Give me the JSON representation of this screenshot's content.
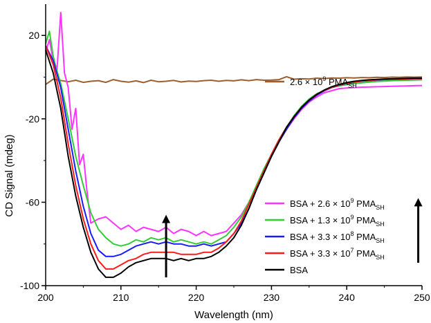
{
  "chart_data": {
    "type": "line",
    "xlabel": "Wavelength (nm)",
    "ylabel": "CD Signal (mdeg)",
    "xlim": [
      200,
      250
    ],
    "ylim": [
      -100,
      35
    ],
    "xticks": [
      200,
      210,
      220,
      230,
      240,
      250
    ],
    "yticks": [
      -100,
      -60,
      -20,
      20
    ],
    "grid": false,
    "legend_position": "bottom-right",
    "series": [
      {
        "name": "2.6 × 10⁹ PMA",
        "legend": {
          "base": "2.6 × 10",
          "exp": "9",
          "main": " PMA",
          "sub": "SH"
        },
        "color": "#9b5e2e",
        "x": [
          200,
          201,
          202,
          203,
          204,
          205,
          206,
          207,
          208,
          209,
          210,
          211,
          212,
          213,
          214,
          215,
          216,
          217,
          218,
          219,
          220,
          221,
          222,
          223,
          224,
          225,
          226,
          227,
          228,
          229,
          230,
          231,
          232,
          233,
          234,
          235,
          236,
          237,
          238,
          239,
          240,
          241,
          242,
          243,
          244,
          245,
          246,
          247,
          248,
          249,
          250
        ],
        "y": [
          -3.5,
          -1.0,
          -1.6,
          -2.2,
          -1.5,
          -2.5,
          -2.0,
          -1.7,
          -2.5,
          -1.2,
          -2.0,
          -2.4,
          -1.8,
          -2.6,
          -1.5,
          -2.2,
          -2.0,
          -1.6,
          -2.3,
          -1.9,
          -2.1,
          -1.7,
          -1.5,
          -2.0,
          -1.6,
          -1.8,
          -1.3,
          -1.7,
          -1.2,
          -1.5,
          -1.4,
          -1.2,
          0.2,
          -1.0,
          -0.8,
          -0.9,
          -0.5,
          -0.7,
          -0.4,
          -0.5,
          -0.3,
          -0.4,
          -0.2,
          -0.3,
          -0.1,
          -0.2,
          0.0,
          -0.1,
          0.1,
          0.0,
          0.1
        ]
      },
      {
        "name": "BSA + 2.6 × 10⁹ PMA",
        "legend": {
          "base": "BSA + 2.6 × 10",
          "exp": "9",
          "main": " PMA",
          "sub": "SH"
        },
        "color": "#ff33ff",
        "x": [
          200,
          200.5,
          201,
          201.5,
          202,
          202.5,
          203,
          203.5,
          204,
          204.5,
          205,
          205.5,
          206,
          207,
          208,
          209,
          210,
          211,
          212,
          213,
          214,
          215,
          216,
          217,
          218,
          219,
          220,
          221,
          222,
          223,
          224,
          225,
          226,
          227,
          228,
          229,
          230,
          231,
          232,
          233,
          234,
          235,
          236,
          237,
          238,
          239,
          240,
          241,
          242,
          243,
          244,
          245,
          246,
          247,
          248,
          249,
          250
        ],
        "y": [
          12,
          18,
          8,
          3,
          31,
          2,
          -5,
          -25,
          -15,
          -42,
          -37,
          -55,
          -70,
          -68,
          -67,
          -70,
          -73,
          -71,
          -74,
          -72,
          -73,
          -74,
          -72,
          -75,
          -73,
          -74,
          -76,
          -74,
          -76,
          -75,
          -74,
          -70,
          -66,
          -60,
          -53,
          -45,
          -38,
          -31,
          -25,
          -20,
          -15.5,
          -12,
          -9.5,
          -7.5,
          -6.5,
          -5.5,
          -5.2,
          -5.0,
          -4.8,
          -4.7,
          -4.6,
          -4.5,
          -4.4,
          -4.3,
          -4.2,
          -4.1,
          -4.0
        ]
      },
      {
        "name": "BSA + 1.3 × 10⁹ PMA",
        "legend": {
          "base": "BSA + 1.3 × 10",
          "exp": "9",
          "main": " PMA",
          "sub": "SH"
        },
        "color": "#33cc33",
        "x": [
          200,
          200.5,
          201,
          201.5,
          202,
          203,
          204,
          205,
          206,
          207,
          208,
          209,
          210,
          211,
          212,
          213,
          214,
          215,
          216,
          217,
          218,
          219,
          220,
          221,
          222,
          223,
          224,
          225,
          226,
          227,
          228,
          229,
          230,
          231,
          232,
          233,
          234,
          235,
          236,
          237,
          238,
          239,
          240,
          241,
          242,
          243,
          244,
          245,
          246,
          247,
          248,
          249,
          250
        ],
        "y": [
          16,
          22,
          10,
          3,
          -3,
          -20,
          -38,
          -52,
          -65,
          -73,
          -77,
          -80,
          -81,
          -80,
          -78,
          -79,
          -77,
          -78,
          -77,
          -79,
          -78,
          -79,
          -80,
          -79,
          -80,
          -78,
          -76,
          -72,
          -67,
          -60,
          -52,
          -44,
          -37,
          -30,
          -24,
          -18.5,
          -14,
          -10.5,
          -8,
          -6.5,
          -5,
          -4.2,
          -3.6,
          -3.1,
          -2.7,
          -2.4,
          -2.1,
          -1.9,
          -1.7,
          -1.6,
          -1.5,
          -1.4,
          -1.3
        ]
      },
      {
        "name": "BSA + 3.3 × 10⁸ PMA",
        "legend": {
          "base": "BSA + 3.3 × 10",
          "exp": "8",
          "main": " PMA",
          "sub": "SH"
        },
        "color": "#1a1aff",
        "x": [
          200,
          201,
          202,
          203,
          204,
          205,
          206,
          207,
          208,
          209,
          210,
          211,
          212,
          213,
          214,
          215,
          216,
          217,
          218,
          219,
          220,
          221,
          222,
          223,
          224,
          225,
          226,
          227,
          228,
          229,
          230,
          231,
          232,
          233,
          234,
          235,
          236,
          237,
          238,
          239,
          240,
          241,
          242,
          243,
          244,
          245,
          246,
          247,
          248,
          249,
          250
        ],
        "y": [
          15,
          8,
          -5,
          -25,
          -45,
          -62,
          -75,
          -83,
          -86,
          -86,
          -85,
          -83,
          -81,
          -80,
          -79,
          -80,
          -79,
          -80,
          -80,
          -81,
          -81,
          -80,
          -81,
          -80,
          -79,
          -75,
          -70,
          -63,
          -54,
          -46,
          -38,
          -31,
          -25,
          -19.5,
          -15,
          -11.5,
          -8.7,
          -6.6,
          -5,
          -3.9,
          -3.0,
          -2.4,
          -2.0,
          -1.7,
          -1.4,
          -1.2,
          -1.1,
          -1.0,
          -0.9,
          -0.8,
          -0.8
        ]
      },
      {
        "name": "BSA + 3.3 × 10⁷ PMA",
        "legend": {
          "base": "BSA + 3.3 × 10",
          "exp": "7",
          "main": " PMA",
          "sub": "SH"
        },
        "color": "#ff1a1a",
        "x": [
          200,
          201,
          202,
          203,
          204,
          205,
          206,
          207,
          208,
          209,
          210,
          211,
          212,
          213,
          214,
          215,
          216,
          217,
          218,
          219,
          220,
          221,
          222,
          223,
          224,
          225,
          226,
          227,
          228,
          229,
          230,
          231,
          232,
          233,
          234,
          235,
          236,
          237,
          238,
          239,
          240,
          241,
          242,
          243,
          244,
          245,
          246,
          247,
          248,
          249,
          250
        ],
        "y": [
          15,
          6,
          -10,
          -32,
          -52,
          -68,
          -80,
          -88,
          -92,
          -92,
          -90,
          -88,
          -87,
          -85,
          -84,
          -84,
          -84,
          -84,
          -85,
          -85,
          -85,
          -84,
          -84,
          -82,
          -79,
          -75,
          -69,
          -61,
          -53,
          -45,
          -37,
          -30,
          -24,
          -19,
          -14.5,
          -11,
          -8.4,
          -6.4,
          -4.9,
          -3.8,
          -2.9,
          -2.3,
          -1.9,
          -1.6,
          -1.3,
          -1.1,
          -1.0,
          -0.9,
          -0.8,
          -0.7,
          -0.7
        ]
      },
      {
        "name": "BSA",
        "legend": {
          "base": "BSA",
          "exp": "",
          "main": "",
          "sub": ""
        },
        "color": "#000000",
        "x": [
          200,
          201,
          202,
          203,
          204,
          205,
          206,
          207,
          208,
          209,
          210,
          211,
          212,
          213,
          214,
          215,
          216,
          217,
          218,
          219,
          220,
          221,
          222,
          223,
          224,
          225,
          226,
          227,
          228,
          229,
          230,
          231,
          232,
          233,
          234,
          235,
          236,
          237,
          238,
          239,
          240,
          241,
          242,
          243,
          244,
          245,
          246,
          247,
          248,
          249,
          250
        ],
        "y": [
          13,
          2,
          -15,
          -38,
          -57,
          -72,
          -84,
          -92,
          -96,
          -96,
          -94,
          -91,
          -89,
          -88,
          -87,
          -87,
          -87,
          -88,
          -87,
          -88,
          -87,
          -87,
          -86,
          -84,
          -81,
          -77,
          -71,
          -63,
          -54,
          -46,
          -38,
          -31,
          -24,
          -19,
          -14.5,
          -11,
          -8.3,
          -6.2,
          -4.6,
          -3.5,
          -2.6,
          -2.0,
          -1.6,
          -1.3,
          -1.1,
          -0.9,
          -0.8,
          -0.7,
          -0.6,
          -0.5,
          -0.5
        ]
      }
    ],
    "annotations": [
      {
        "type": "arrow",
        "direction": "up",
        "x": 216,
        "y_from": -96,
        "y_to": -66
      },
      {
        "type": "arrow",
        "direction": "up",
        "x": 249.5,
        "y_from": -89,
        "y_to": -58
      }
    ]
  }
}
